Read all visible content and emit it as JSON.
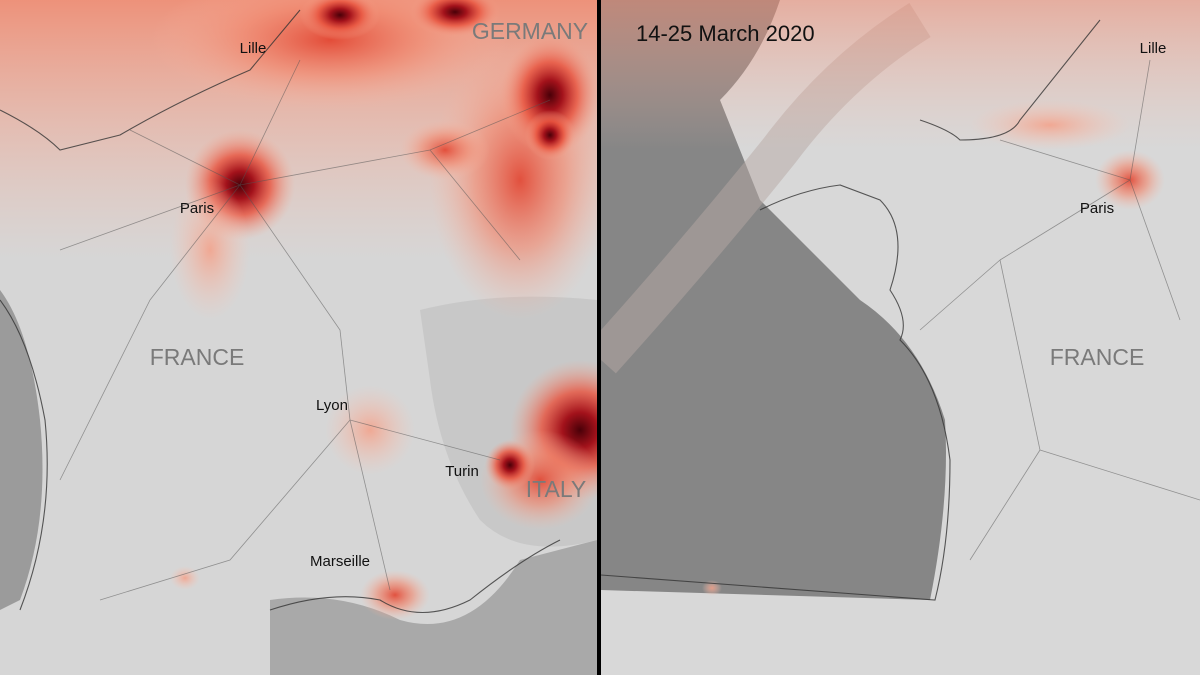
{
  "panels": [
    {
      "labels": [
        "GERMANY",
        "Lille",
        "Paris",
        "FRANCE",
        "Lyon",
        "Turin",
        "ITALY",
        "Marseille"
      ]
    },
    {
      "title": "14-25 March 2020",
      "labels": [
        "Lille",
        "Paris",
        "FRANCE"
      ]
    }
  ]
}
